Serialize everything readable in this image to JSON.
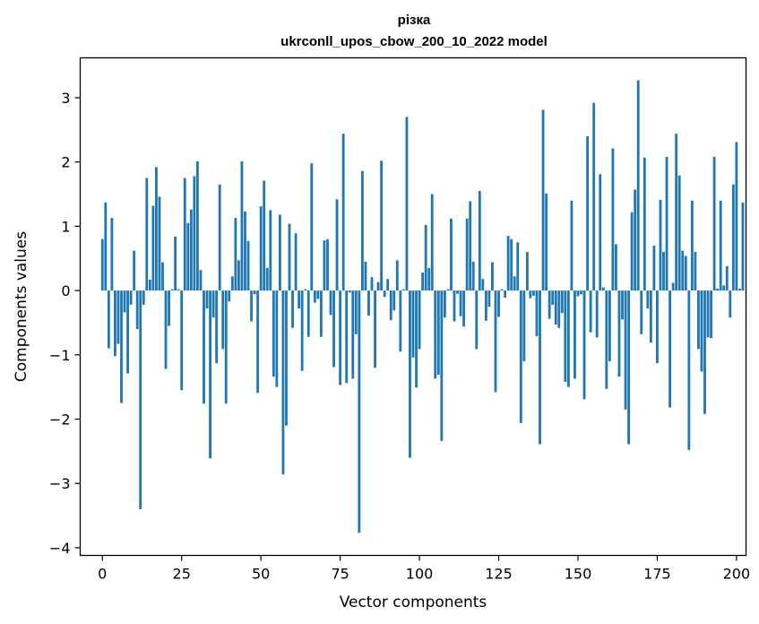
{
  "chart_data": {
    "type": "bar",
    "title": "різка",
    "subtitle": "ukrconll_upos_cbow_200_10_2022 model",
    "xlabel": "Vector components",
    "ylabel": "Components values",
    "xlim": [
      -7,
      203
    ],
    "ylim": [
      -4.12,
      3.62
    ],
    "xticks": [
      0,
      25,
      50,
      75,
      100,
      125,
      150,
      175,
      200
    ],
    "xtick_labels": [
      "0",
      "25",
      "50",
      "75",
      "100",
      "125",
      "150",
      "175",
      "200"
    ],
    "yticks": [
      -4,
      -3,
      -2,
      -1,
      0,
      1,
      2,
      3
    ],
    "ytick_labels": [
      "−4",
      "−3",
      "−2",
      "−1",
      "0",
      "1",
      "2",
      "3"
    ],
    "grid": false,
    "bar_color": "#1f77b4",
    "values": [
      0.8,
      1.37,
      -0.9,
      1.13,
      -1.02,
      -0.83,
      -1.75,
      -0.34,
      -1.29,
      -0.22,
      0.62,
      -0.6,
      -3.4,
      -0.22,
      1.75,
      0.17,
      1.32,
      1.92,
      1.46,
      0.44,
      -1.22,
      -0.55,
      0.02,
      0.84,
      0.02,
      -1.55,
      1.75,
      1.05,
      1.26,
      1.78,
      2.01,
      0.32,
      -1.76,
      -0.28,
      -2.61,
      -0.42,
      -1.13,
      1.65,
      -0.91,
      -1.76,
      -0.17,
      0.22,
      1.13,
      0.47,
      2.01,
      1.23,
      0.77,
      -0.48,
      -0.06,
      -1.59,
      1.31,
      1.71,
      0.35,
      1.25,
      -1.34,
      -1.5,
      1.18,
      -2.86,
      -2.1,
      1.04,
      -0.58,
      0.89,
      -0.28,
      -1.25,
      0.02,
      -0.72,
      1.98,
      -0.19,
      -0.13,
      -0.72,
      0.78,
      0.8,
      -0.38,
      -1.19,
      1.42,
      -1.47,
      2.44,
      -1.44,
      -0.03,
      -1.37,
      -0.68,
      -3.77,
      1.86,
      0.45,
      -0.39,
      0.21,
      -1.2,
      0.13,
      2.02,
      -0.1,
      0.18,
      -0.46,
      -0.31,
      0.47,
      -0.95,
      0.02,
      2.7,
      -2.6,
      -1.04,
      -1.51,
      -0.91,
      0.28,
      1.02,
      0.35,
      1.5,
      -1.37,
      -1.31,
      -2.34,
      -0.42,
      0.02,
      1.12,
      -0.48,
      -0.05,
      -0.4,
      -0.56,
      1.12,
      1.39,
      0.45,
      -0.91,
      1.55,
      0.18,
      -0.47,
      -0.25,
      0.44,
      -1.58,
      -0.41,
      0.02,
      -0.11,
      0.85,
      0.8,
      0.22,
      0.75,
      -2.06,
      -1.1,
      0.6,
      -0.12,
      -0.08,
      -0.71,
      -2.39,
      2.81,
      1.51,
      -0.44,
      -0.22,
      -0.53,
      -0.58,
      -0.35,
      -1.42,
      -1.5,
      1.4,
      -1.37,
      -0.09,
      -0.06,
      -1.69,
      2.4,
      -0.65,
      2.92,
      -0.73,
      1.81,
      0.05,
      -1.53,
      -1.1,
      2.21,
      0.72,
      -1.34,
      -0.45,
      -1.85,
      -2.39,
      1.22,
      1.57,
      3.27,
      -0.68,
      2.07,
      -0.28,
      -0.81,
      0.7,
      -1.13,
      1.41,
      0.6,
      2.08,
      -1.82,
      0.12,
      2.44,
      1.79,
      0.62,
      0.54,
      -2.48,
      1.4,
      0.6,
      -0.91,
      -1.26,
      -1.92,
      -0.73,
      -0.74,
      2.08,
      0.03,
      1.4,
      0.08,
      0.38,
      -0.42,
      1.65,
      2.31,
      0.03,
      1.37
    ]
  }
}
